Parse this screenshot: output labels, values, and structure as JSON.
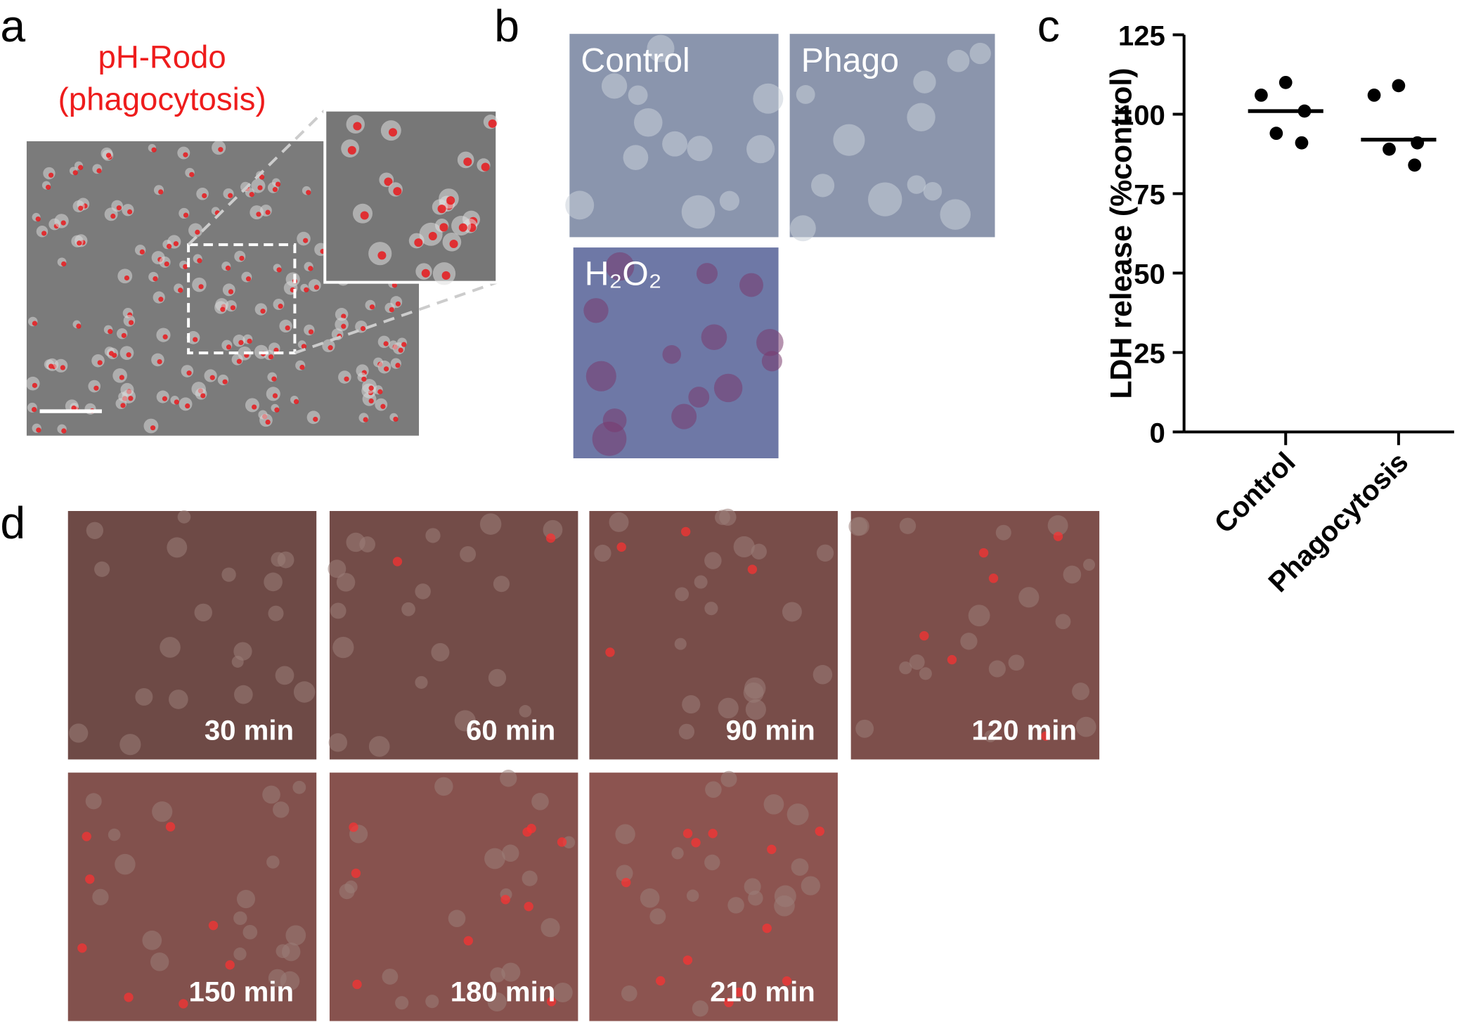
{
  "panels": {
    "a": {
      "letter": "a",
      "title_lines": [
        "pH-Rodo",
        "(phagocytosis)"
      ]
    },
    "b": {
      "letter": "b",
      "images": [
        "Control",
        "Phago",
        "H₂O₂"
      ]
    },
    "c": {
      "letter": "c"
    },
    "d": {
      "letter": "d",
      "images": [
        "30 min",
        "60 min",
        "90 min",
        "120 min",
        "150 min",
        "180 min",
        "210 min"
      ]
    }
  },
  "chart_data": {
    "type": "dot",
    "ylabel": "LDH release (%control)",
    "categories": [
      "Control",
      "Phagocytosis"
    ],
    "values": [
      [
        110,
        106,
        101,
        94,
        91
      ],
      [
        109,
        106,
        91,
        89,
        84
      ]
    ],
    "center_values": [
      101,
      92
    ],
    "color": "#000000",
    "ylim": [
      0,
      125
    ],
    "yticks": [
      0,
      25,
      50,
      75,
      100,
      125
    ]
  }
}
